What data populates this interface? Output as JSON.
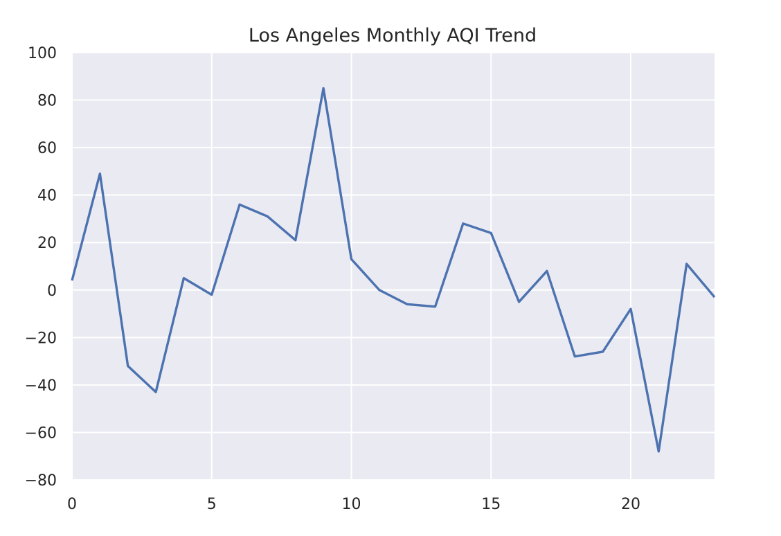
{
  "chart_data": {
    "type": "line",
    "title": "Los Angeles Monthly AQI Trend",
    "xlabel": "",
    "ylabel": "",
    "xlim": [
      0,
      23
    ],
    "ylim": [
      -80,
      100
    ],
    "x_ticks": [
      0,
      5,
      10,
      15,
      20
    ],
    "y_ticks": [
      -80,
      -60,
      -40,
      -20,
      0,
      20,
      40,
      60,
      80,
      100
    ],
    "x_tick_labels": [
      "0",
      "5",
      "10",
      "15",
      "20"
    ],
    "y_tick_labels": [
      "−80",
      "−60",
      "−40",
      "−20",
      "0",
      "20",
      "40",
      "60",
      "80",
      "100"
    ],
    "grid": true,
    "legend": "none",
    "colors": {
      "background": "#eaeaf2",
      "grid": "#ffffff",
      "line": "#4c72b0"
    },
    "series": [
      {
        "x": [
          0,
          1,
          2,
          3,
          4,
          5,
          6,
          7,
          8,
          9,
          10,
          11,
          12,
          13,
          14,
          15,
          16,
          17,
          18,
          19,
          20,
          21,
          22,
          23
        ],
        "values": [
          4,
          49,
          -32,
          -43,
          5,
          -2,
          36,
          31,
          21,
          85,
          13,
          0,
          -6,
          -7,
          28,
          24,
          -5,
          8,
          -28,
          -26,
          -8,
          -68,
          11,
          -3
        ]
      }
    ]
  }
}
